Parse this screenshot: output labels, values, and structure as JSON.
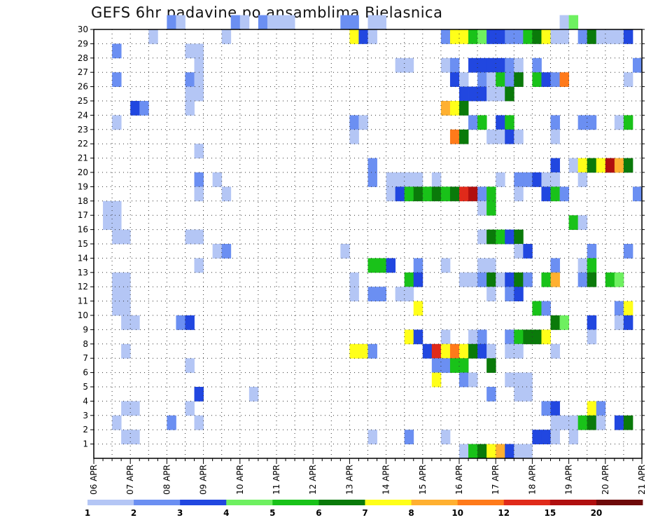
{
  "chart_data": {
    "type": "heatmap",
    "title": "GEFS 6hr padavine po ansamblima Bjelasnica",
    "xlabel": "",
    "ylabel": "",
    "x_tick_labels": [
      "06 APR",
      "07 APR",
      "08 APR",
      "09 APR",
      "10 APR",
      "11 APR",
      "12 APR",
      "13 APR",
      "14 APR",
      "15 APR",
      "16 APR",
      "17 APR",
      "18 APR",
      "19 APR",
      "20 APR",
      "21 APR"
    ],
    "y_tick_labels": [
      "1",
      "2",
      "3",
      "4",
      "5",
      "6",
      "7",
      "8",
      "9",
      "10",
      "11",
      "12",
      "13",
      "14",
      "15",
      "16",
      "17",
      "18",
      "19",
      "20",
      "21",
      "22",
      "23",
      "24",
      "25",
      "26",
      "27",
      "28",
      "29",
      "30"
    ],
    "x_range_steps": [
      0,
      60
    ],
    "y_range_members": [
      0,
      30
    ],
    "colorbar": {
      "levels": [
        "1",
        "2",
        "3",
        "4",
        "5",
        "6",
        "7",
        "8",
        "10",
        "12",
        "15",
        "20"
      ],
      "colors": [
        "#b4c6f5",
        "#6b8ff2",
        "#2147e0",
        "#6ef060",
        "#19c219",
        "#0a7a0a",
        "#ffff19",
        "#ffb030",
        "#ff7a1a",
        "#e02a1a",
        "#b00f0f",
        "#6e0a0a"
      ]
    },
    "cells": [
      {
        "m": 30,
        "s": [
          [
            8,
            1
          ],
          [
            9,
            0
          ],
          [
            15,
            1
          ],
          [
            16,
            0
          ],
          [
            18,
            1
          ],
          [
            19,
            0
          ],
          [
            20,
            0
          ],
          [
            21,
            0
          ],
          [
            27,
            1
          ],
          [
            28,
            1
          ],
          [
            30,
            0
          ],
          [
            31,
            0
          ],
          [
            51,
            0
          ],
          [
            52,
            3
          ]
        ]
      },
      {
        "m": 29,
        "s": [
          [
            6,
            0
          ],
          [
            14,
            0
          ],
          [
            28,
            6
          ],
          [
            29,
            2
          ],
          [
            30,
            0
          ],
          [
            38,
            1
          ],
          [
            39,
            6
          ],
          [
            40,
            6
          ],
          [
            41,
            4
          ],
          [
            42,
            3
          ],
          [
            43,
            2
          ],
          [
            44,
            2
          ],
          [
            45,
            1
          ],
          [
            46,
            1
          ],
          [
            47,
            4
          ],
          [
            48,
            5
          ],
          [
            49,
            6
          ],
          [
            50,
            0
          ],
          [
            51,
            0
          ],
          [
            53,
            1
          ],
          [
            54,
            5
          ],
          [
            55,
            0
          ],
          [
            56,
            0
          ],
          [
            57,
            0
          ],
          [
            58,
            2
          ]
        ]
      },
      {
        "m": 28,
        "s": [
          [
            2,
            1
          ],
          [
            10,
            0
          ],
          [
            11,
            0
          ]
        ]
      },
      {
        "m": 27,
        "s": [
          [
            11,
            0
          ],
          [
            33,
            0
          ],
          [
            34,
            0
          ],
          [
            38,
            0
          ],
          [
            39,
            1
          ],
          [
            41,
            2
          ],
          [
            42,
            2
          ],
          [
            43,
            2
          ],
          [
            44,
            2
          ],
          [
            45,
            1
          ],
          [
            46,
            0
          ],
          [
            48,
            1
          ],
          [
            59,
            1
          ]
        ]
      },
      {
        "m": 26,
        "s": [
          [
            2,
            1
          ],
          [
            10,
            1
          ],
          [
            11,
            0
          ],
          [
            39,
            2
          ],
          [
            40,
            0
          ],
          [
            42,
            1
          ],
          [
            43,
            0
          ],
          [
            44,
            4
          ],
          [
            45,
            1
          ],
          [
            46,
            5
          ],
          [
            48,
            4
          ],
          [
            49,
            2
          ],
          [
            50,
            1
          ],
          [
            51,
            8
          ],
          [
            58,
            0
          ]
        ]
      },
      {
        "m": 25,
        "s": [
          [
            10,
            0
          ],
          [
            11,
            0
          ],
          [
            40,
            2
          ],
          [
            41,
            2
          ],
          [
            42,
            2
          ],
          [
            43,
            0
          ],
          [
            44,
            0
          ],
          [
            45,
            5
          ]
        ]
      },
      {
        "m": 24,
        "s": [
          [
            4,
            2
          ],
          [
            5,
            1
          ],
          [
            10,
            0
          ],
          [
            38,
            7
          ],
          [
            39,
            6
          ],
          [
            40,
            5
          ]
        ]
      },
      {
        "m": 23,
        "s": [
          [
            2,
            0
          ],
          [
            28,
            1
          ],
          [
            29,
            0
          ],
          [
            41,
            1
          ],
          [
            42,
            4
          ],
          [
            44,
            2
          ],
          [
            45,
            4
          ],
          [
            50,
            1
          ],
          [
            53,
            1
          ],
          [
            54,
            1
          ],
          [
            57,
            0
          ],
          [
            58,
            4
          ]
        ]
      },
      {
        "m": 22,
        "s": [
          [
            28,
            0
          ],
          [
            39,
            8
          ],
          [
            40,
            5
          ],
          [
            43,
            0
          ],
          [
            44,
            0
          ],
          [
            45,
            2
          ],
          [
            46,
            0
          ],
          [
            50,
            0
          ]
        ]
      },
      {
        "m": 21,
        "s": [
          [
            11,
            0
          ]
        ]
      },
      {
        "m": 20,
        "s": [
          [
            30,
            1
          ],
          [
            50,
            2
          ],
          [
            52,
            0
          ],
          [
            53,
            6
          ],
          [
            54,
            5
          ],
          [
            55,
            6
          ],
          [
            56,
            10
          ],
          [
            57,
            7
          ],
          [
            58,
            5
          ]
        ]
      },
      {
        "m": 19,
        "s": [
          [
            11,
            1
          ],
          [
            13,
            0
          ],
          [
            30,
            1
          ],
          [
            32,
            0
          ],
          [
            33,
            0
          ],
          [
            34,
            0
          ],
          [
            35,
            0
          ],
          [
            37,
            0
          ],
          [
            44,
            0
          ],
          [
            46,
            1
          ],
          [
            47,
            1
          ],
          [
            48,
            2
          ],
          [
            49,
            0
          ],
          [
            50,
            0
          ],
          [
            53,
            0
          ]
        ]
      },
      {
        "m": 18,
        "s": [
          [
            11,
            0
          ],
          [
            14,
            0
          ],
          [
            32,
            0
          ],
          [
            33,
            2
          ],
          [
            34,
            4
          ],
          [
            35,
            5
          ],
          [
            36,
            4
          ],
          [
            37,
            5
          ],
          [
            38,
            4
          ],
          [
            39,
            5
          ],
          [
            40,
            9
          ],
          [
            41,
            10
          ],
          [
            42,
            1
          ],
          [
            43,
            4
          ],
          [
            46,
            0
          ],
          [
            49,
            2
          ],
          [
            50,
            4
          ],
          [
            51,
            1
          ],
          [
            59,
            1
          ]
        ]
      },
      {
        "m": 17,
        "s": [
          [
            1,
            0
          ],
          [
            2,
            0
          ],
          [
            42,
            0
          ],
          [
            43,
            4
          ]
        ]
      },
      {
        "m": 16,
        "s": [
          [
            1,
            0
          ],
          [
            2,
            0
          ],
          [
            52,
            4
          ],
          [
            53,
            0
          ]
        ]
      },
      {
        "m": 15,
        "s": [
          [
            2,
            0
          ],
          [
            3,
            0
          ],
          [
            10,
            0
          ],
          [
            11,
            0
          ],
          [
            42,
            0
          ],
          [
            43,
            5
          ],
          [
            44,
            4
          ],
          [
            45,
            2
          ],
          [
            46,
            5
          ]
        ]
      },
      {
        "m": 14,
        "s": [
          [
            13,
            0
          ],
          [
            14,
            1
          ],
          [
            27,
            0
          ],
          [
            46,
            0
          ],
          [
            47,
            2
          ],
          [
            54,
            1
          ],
          [
            58,
            1
          ]
        ]
      },
      {
        "m": 13,
        "s": [
          [
            11,
            0
          ],
          [
            30,
            4
          ],
          [
            31,
            4
          ],
          [
            32,
            2
          ],
          [
            35,
            1
          ],
          [
            38,
            0
          ],
          [
            42,
            0
          ],
          [
            43,
            0
          ],
          [
            50,
            1
          ],
          [
            53,
            0
          ],
          [
            54,
            4
          ]
        ]
      },
      {
        "m": 12,
        "s": [
          [
            2,
            0
          ],
          [
            3,
            0
          ],
          [
            28,
            0
          ],
          [
            34,
            4
          ],
          [
            35,
            2
          ],
          [
            40,
            0
          ],
          [
            41,
            0
          ],
          [
            42,
            1
          ],
          [
            43,
            5
          ],
          [
            44,
            0
          ],
          [
            45,
            2
          ],
          [
            46,
            5
          ],
          [
            47,
            1
          ],
          [
            49,
            4
          ],
          [
            50,
            7
          ],
          [
            53,
            1
          ],
          [
            54,
            5
          ],
          [
            56,
            4
          ],
          [
            57,
            3
          ]
        ]
      },
      {
        "m": 11,
        "s": [
          [
            2,
            0
          ],
          [
            3,
            0
          ],
          [
            28,
            0
          ],
          [
            30,
            1
          ],
          [
            31,
            1
          ],
          [
            33,
            0
          ],
          [
            34,
            0
          ],
          [
            43,
            0
          ],
          [
            45,
            1
          ],
          [
            46,
            2
          ]
        ]
      },
      {
        "m": 10,
        "s": [
          [
            2,
            0
          ],
          [
            3,
            0
          ],
          [
            35,
            6
          ],
          [
            48,
            4
          ],
          [
            49,
            1
          ],
          [
            57,
            1
          ],
          [
            58,
            6
          ]
        ]
      },
      {
        "m": 9,
        "s": [
          [
            3,
            0
          ],
          [
            4,
            0
          ],
          [
            9,
            1
          ],
          [
            10,
            2
          ],
          [
            50,
            5
          ],
          [
            51,
            3
          ],
          [
            54,
            2
          ],
          [
            57,
            0
          ],
          [
            58,
            2
          ]
        ]
      },
      {
        "m": 8,
        "s": [
          [
            34,
            6
          ],
          [
            35,
            2
          ],
          [
            38,
            0
          ],
          [
            41,
            0
          ],
          [
            42,
            1
          ],
          [
            45,
            1
          ],
          [
            46,
            4
          ],
          [
            47,
            5
          ],
          [
            48,
            5
          ],
          [
            49,
            6
          ],
          [
            54,
            0
          ]
        ]
      },
      {
        "m": 7,
        "s": [
          [
            3,
            0
          ],
          [
            28,
            6
          ],
          [
            29,
            6
          ],
          [
            30,
            1
          ],
          [
            36,
            2
          ],
          [
            37,
            9
          ],
          [
            38,
            6
          ],
          [
            39,
            8
          ],
          [
            40,
            6
          ],
          [
            41,
            5
          ],
          [
            42,
            2
          ],
          [
            43,
            0
          ],
          [
            45,
            0
          ],
          [
            46,
            0
          ],
          [
            50,
            0
          ]
        ]
      },
      {
        "m": 6,
        "s": [
          [
            10,
            0
          ],
          [
            37,
            1
          ],
          [
            38,
            1
          ],
          [
            39,
            4
          ],
          [
            40,
            4
          ],
          [
            43,
            5
          ]
        ]
      },
      {
        "m": 5,
        "s": [
          [
            37,
            6
          ],
          [
            40,
            1
          ],
          [
            41,
            0
          ],
          [
            45,
            0
          ],
          [
            46,
            0
          ],
          [
            47,
            0
          ]
        ]
      },
      {
        "m": 4,
        "s": [
          [
            11,
            2
          ],
          [
            17,
            0
          ],
          [
            43,
            1
          ],
          [
            46,
            0
          ],
          [
            47,
            0
          ]
        ]
      },
      {
        "m": 3,
        "s": [
          [
            3,
            0
          ],
          [
            4,
            0
          ],
          [
            10,
            0
          ],
          [
            49,
            1
          ],
          [
            50,
            2
          ],
          [
            54,
            6
          ],
          [
            55,
            1
          ]
        ]
      },
      {
        "m": 2,
        "s": [
          [
            2,
            0
          ],
          [
            8,
            1
          ],
          [
            11,
            0
          ],
          [
            50,
            0
          ],
          [
            51,
            0
          ],
          [
            52,
            0
          ],
          [
            53,
            4
          ],
          [
            54,
            5
          ],
          [
            55,
            0
          ],
          [
            57,
            2
          ],
          [
            58,
            5
          ]
        ]
      },
      {
        "m": 1,
        "s": [
          [
            3,
            0
          ],
          [
            4,
            0
          ],
          [
            30,
            0
          ],
          [
            34,
            1
          ],
          [
            38,
            0
          ],
          [
            48,
            2
          ],
          [
            49,
            2
          ],
          [
            50,
            0
          ],
          [
            52,
            0
          ]
        ]
      },
      {
        "m": 0,
        "s": [
          [
            40,
            0
          ],
          [
            41,
            4
          ],
          [
            42,
            5
          ],
          [
            43,
            6
          ],
          [
            44,
            7
          ],
          [
            45,
            2
          ],
          [
            46,
            0
          ],
          [
            47,
            0
          ]
        ]
      }
    ]
  }
}
